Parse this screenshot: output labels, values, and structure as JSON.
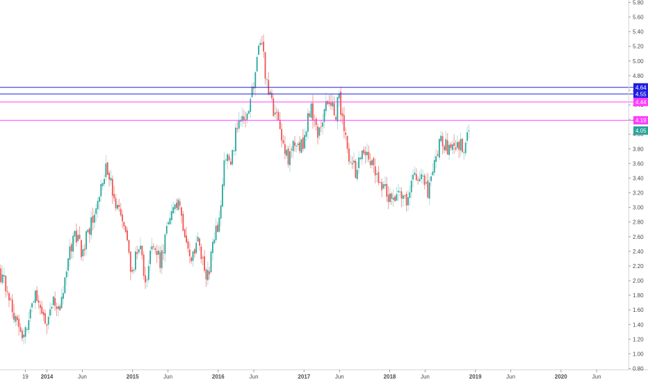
{
  "chart_data": {
    "type": "candlestick",
    "colors": {
      "up": "#26a69a",
      "down": "#ef5350",
      "wick_up": "#b2dfdb",
      "wick_down": "#ef9a9a",
      "axis_text": "#4a4a4a",
      "axis_line": "#d6d6d6"
    },
    "ylim": [
      0.8,
      5.8
    ],
    "yticks": [
      "5.80",
      "5.60",
      "5.40",
      "5.20",
      "5.00",
      "4.80",
      "4.60",
      "4.40",
      "4.20",
      "4.00",
      "3.80",
      "3.60",
      "3.40",
      "3.20",
      "3.00",
      "2.80",
      "2.60",
      "2.40",
      "2.20",
      "2.00",
      "1.80",
      "1.60",
      "1.40",
      "1.20",
      "1.00",
      "0.80"
    ],
    "xaxis": {
      "start": "2013-06-15",
      "end": "2020-10-15",
      "ticks": [
        {
          "label": "19",
          "date": "2013-10-01",
          "bold": false
        },
        {
          "label": "2014",
          "date": "2014-01-01",
          "bold": true
        },
        {
          "label": "Jun",
          "date": "2014-06-01",
          "bold": false
        },
        {
          "label": "2015",
          "date": "2015-01-01",
          "bold": true
        },
        {
          "label": "Jun",
          "date": "2015-06-01",
          "bold": false
        },
        {
          "label": "2016",
          "date": "2016-01-01",
          "bold": true
        },
        {
          "label": "Jun",
          "date": "2016-06-01",
          "bold": false
        },
        {
          "label": "2017",
          "date": "2017-01-01",
          "bold": true
        },
        {
          "label": "Jun",
          "date": "2017-06-01",
          "bold": false
        },
        {
          "label": "2018",
          "date": "2018-01-01",
          "bold": true
        },
        {
          "label": "Jun",
          "date": "2018-06-01",
          "bold": false
        },
        {
          "label": "2019",
          "date": "2019-01-01",
          "bold": true
        },
        {
          "label": "Jun",
          "date": "2019-06-01",
          "bold": false
        },
        {
          "label": "2020",
          "date": "2020-01-01",
          "bold": true
        },
        {
          "label": "Jun",
          "date": "2020-06-01",
          "bold": false
        }
      ]
    },
    "levels": [
      {
        "value": 4.64,
        "label": "4.64",
        "color": "#1f1fe0"
      },
      {
        "value": 4.55,
        "label": "4.55",
        "color": "#1f1fe0"
      },
      {
        "value": 4.44,
        "label": "4.44",
        "color": "#ff3dff"
      },
      {
        "value": 4.19,
        "label": "4.19",
        "color": "#ff3dff"
      }
    ],
    "last_price": {
      "value": 4.05,
      "label": "4.05",
      "color": "#26a69a"
    },
    "series_path": [
      [
        "2013-06-15",
        2.15
      ],
      [
        "2013-08-01",
        1.75
      ],
      [
        "2013-09-15",
        1.25
      ],
      [
        "2013-10-20",
        1.4
      ],
      [
        "2013-11-15",
        1.95
      ],
      [
        "2013-12-10",
        1.55
      ],
      [
        "2014-01-01",
        1.4
      ],
      [
        "2014-02-01",
        1.8
      ],
      [
        "2014-03-01",
        1.55
      ],
      [
        "2014-04-01",
        2.2
      ],
      [
        "2014-05-01",
        2.65
      ],
      [
        "2014-06-01",
        2.4
      ],
      [
        "2014-07-15",
        2.8
      ],
      [
        "2014-09-01",
        3.4
      ],
      [
        "2014-09-20",
        3.55
      ],
      [
        "2014-10-15",
        3.1
      ],
      [
        "2014-12-01",
        2.7
      ],
      [
        "2015-01-01",
        2.1
      ],
      [
        "2015-02-01",
        2.55
      ],
      [
        "2015-03-01",
        1.9
      ],
      [
        "2015-04-01",
        2.6
      ],
      [
        "2015-05-01",
        2.25
      ],
      [
        "2015-06-01",
        2.7
      ],
      [
        "2015-07-15",
        3.05
      ],
      [
        "2015-08-15",
        2.7
      ],
      [
        "2015-09-15",
        2.25
      ],
      [
        "2015-10-15",
        2.55
      ],
      [
        "2015-11-15",
        1.95
      ],
      [
        "2015-12-15",
        2.5
      ],
      [
        "2016-01-10",
        2.85
      ],
      [
        "2016-02-01",
        3.7
      ],
      [
        "2016-03-01",
        3.6
      ],
      [
        "2016-04-01",
        4.3
      ],
      [
        "2016-05-01",
        4.1
      ],
      [
        "2016-06-15",
        4.9
      ],
      [
        "2016-07-05",
        5.35
      ],
      [
        "2016-08-01",
        4.6
      ],
      [
        "2016-09-01",
        4.3
      ],
      [
        "2016-10-01",
        3.95
      ],
      [
        "2016-11-01",
        3.65
      ],
      [
        "2016-12-01",
        3.95
      ],
      [
        "2017-01-01",
        3.8
      ],
      [
        "2017-02-01",
        4.4
      ],
      [
        "2017-03-01",
        4.0
      ],
      [
        "2017-04-01",
        4.3
      ],
      [
        "2017-05-01",
        4.5
      ],
      [
        "2017-05-20",
        4.25
      ],
      [
        "2017-06-01",
        4.6
      ],
      [
        "2017-06-20",
        4.1
      ],
      [
        "2017-07-15",
        3.7
      ],
      [
        "2017-08-15",
        3.45
      ],
      [
        "2017-09-15",
        3.8
      ],
      [
        "2017-10-15",
        3.65
      ],
      [
        "2017-11-15",
        3.45
      ],
      [
        "2017-12-15",
        3.25
      ],
      [
        "2018-01-15",
        3.1
      ],
      [
        "2018-02-15",
        3.3
      ],
      [
        "2018-03-15",
        3.05
      ],
      [
        "2018-04-15",
        3.45
      ],
      [
        "2018-05-15",
        3.4
      ],
      [
        "2018-06-15",
        3.2
      ],
      [
        "2018-07-15",
        3.65
      ],
      [
        "2018-08-15",
        3.95
      ],
      [
        "2018-09-15",
        3.75
      ],
      [
        "2018-10-15",
        3.9
      ],
      [
        "2018-11-15",
        3.8
      ],
      [
        "2018-12-05",
        4.05
      ]
    ]
  }
}
